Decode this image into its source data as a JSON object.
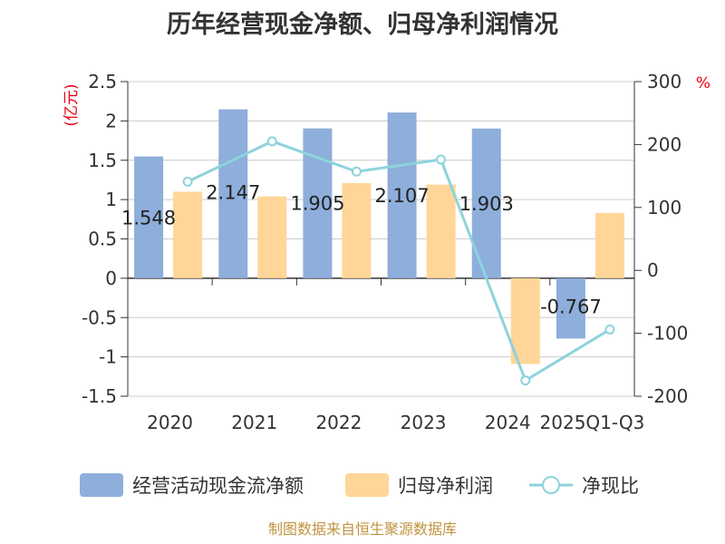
{
  "chart_data": {
    "type": "bar",
    "title": "历年经营现金净额、归母净利润情况",
    "left_axis_unit": "(亿元)",
    "right_axis_unit": "%",
    "categories": [
      "2020",
      "2021",
      "2022",
      "2023",
      "2024",
      "2025Q1-Q3"
    ],
    "left_ylim": [
      -1.5,
      2.5
    ],
    "left_ticks": [
      "2.5",
      "2",
      "1.5",
      "1",
      "0.5",
      "0",
      "-0.5",
      "-1",
      "-1.5"
    ],
    "right_ylim": [
      -200,
      300
    ],
    "right_ticks": [
      "300",
      "200",
      "100",
      "0",
      "-100",
      "-200"
    ],
    "grid": true,
    "legend_position": "bottom",
    "series": [
      {
        "name": "经营活动现金流净额",
        "type": "bar",
        "axis": "left",
        "color": "#8eaedb",
        "values": [
          1.548,
          2.147,
          1.905,
          2.107,
          1.903,
          -0.767
        ],
        "labels": [
          "1.548",
          "2.147",
          "1.905",
          "2.107",
          "1.903",
          "-0.767"
        ]
      },
      {
        "name": "归母净利润",
        "type": "bar",
        "axis": "left",
        "color": "#ffd698",
        "values": [
          1.1,
          1.04,
          1.21,
          1.19,
          -1.09,
          0.83
        ]
      },
      {
        "name": "净现比",
        "type": "line",
        "axis": "right",
        "color": "#8dd3dc",
        "values": [
          141,
          205,
          157,
          176,
          -175,
          -94
        ]
      }
    ],
    "source": "制图数据来自恒生聚源数据库"
  }
}
